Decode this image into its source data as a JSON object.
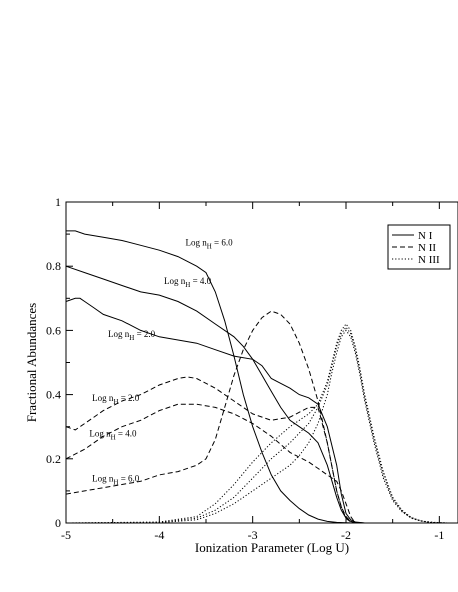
{
  "chart_data": {
    "type": "line",
    "xlabel": "Ionization Parameter (Log U)",
    "ylabel": "Fractional Abundances",
    "xlim": [
      -5,
      -0.8
    ],
    "ylim": [
      0,
      1
    ],
    "x_ticks": [
      -5,
      -4,
      -3,
      -2,
      -1
    ],
    "x_tick_labels": [
      "-5",
      "-4",
      "-3",
      "-2",
      "-1"
    ],
    "y_ticks": [
      0,
      0.2,
      0.4,
      0.6,
      0.8,
      1
    ],
    "y_tick_labels": [
      "0",
      "0.2",
      "0.4",
      "0.6",
      "0.8",
      "1"
    ],
    "grid": false,
    "legend_position": "top-right",
    "legend": [
      {
        "label": "N I",
        "style": "solid"
      },
      {
        "label": "N II",
        "style": "dashed"
      },
      {
        "label": "N III",
        "style": "dotted"
      }
    ],
    "annotations": [
      {
        "prefix": "Log n",
        "sub": "H",
        "suffix": " = 6.0",
        "x": -3.72,
        "y": 0.865
      },
      {
        "prefix": "Log n",
        "sub": "H",
        "suffix": " = 4.0",
        "x": -3.95,
        "y": 0.745
      },
      {
        "prefix": "Log n",
        "sub": "H",
        "suffix": " = 2.0",
        "x": -4.55,
        "y": 0.58
      },
      {
        "prefix": "Log n",
        "sub": "H",
        "suffix": " = 2.0",
        "x": -4.72,
        "y": 0.38
      },
      {
        "prefix": "Log n",
        "sub": "H",
        "suffix": " = 4.0",
        "x": -4.75,
        "y": 0.27
      },
      {
        "prefix": "Log n",
        "sub": "H",
        "suffix": " = 6.0",
        "x": -4.72,
        "y": 0.13
      }
    ],
    "series": [
      {
        "species": "N I",
        "style": "solid",
        "label": "Log nH = 6.0",
        "x": [
          -5,
          -4.9,
          -4.8,
          -4.6,
          -4.4,
          -4.2,
          -4.0,
          -3.8,
          -3.6,
          -3.5,
          -3.4,
          -3.3,
          -3.2,
          -3.1,
          -3.0,
          -2.9,
          -2.8,
          -2.7,
          -2.6,
          -2.5,
          -2.4,
          -2.3,
          -2.2,
          -2.1,
          -2.0,
          -1.9,
          -1.8
        ],
        "y": [
          0.91,
          0.91,
          0.9,
          0.89,
          0.88,
          0.865,
          0.85,
          0.83,
          0.8,
          0.78,
          0.72,
          0.63,
          0.52,
          0.4,
          0.3,
          0.22,
          0.15,
          0.1,
          0.07,
          0.045,
          0.025,
          0.012,
          0.005,
          0.002,
          0.001,
          0.0,
          0.0
        ]
      },
      {
        "species": "N I",
        "style": "solid",
        "label": "Log nH = 4.0",
        "x": [
          -5,
          -4.8,
          -4.6,
          -4.4,
          -4.2,
          -4.0,
          -3.8,
          -3.6,
          -3.4,
          -3.2,
          -3.1,
          -3.0,
          -2.9,
          -2.8,
          -2.7,
          -2.6,
          -2.5,
          -2.4,
          -2.3,
          -2.2,
          -2.1,
          -2.05,
          -2.0,
          -1.95,
          -1.9,
          -1.8
        ],
        "y": [
          0.8,
          0.78,
          0.76,
          0.74,
          0.72,
          0.71,
          0.69,
          0.66,
          0.62,
          0.58,
          0.55,
          0.51,
          0.46,
          0.41,
          0.36,
          0.32,
          0.3,
          0.28,
          0.25,
          0.18,
          0.08,
          0.04,
          0.015,
          0.005,
          0.002,
          0.0
        ]
      },
      {
        "species": "N I",
        "style": "solid",
        "label": "Log nH = 2.0",
        "x": [
          -5,
          -4.9,
          -4.85,
          -4.8,
          -4.7,
          -4.6,
          -4.4,
          -4.2,
          -4.0,
          -3.8,
          -3.6,
          -3.4,
          -3.2,
          -3.0,
          -2.9,
          -2.8,
          -2.6,
          -2.5,
          -2.4,
          -2.3,
          -2.2,
          -2.1,
          -2.05,
          -2.0,
          -1.95,
          -1.9,
          -1.8
        ],
        "y": [
          0.69,
          0.7,
          0.7,
          0.69,
          0.67,
          0.65,
          0.63,
          0.6,
          0.58,
          0.57,
          0.56,
          0.54,
          0.52,
          0.51,
          0.49,
          0.45,
          0.42,
          0.4,
          0.39,
          0.37,
          0.3,
          0.18,
          0.09,
          0.03,
          0.01,
          0.003,
          0.0
        ]
      },
      {
        "species": "N II",
        "style": "dashed",
        "label": "Log nH = 2.0",
        "x": [
          -5,
          -4.9,
          -4.8,
          -4.7,
          -4.6,
          -4.4,
          -4.2,
          -4.0,
          -3.8,
          -3.7,
          -3.6,
          -3.4,
          -3.2,
          -3.0,
          -2.8,
          -2.6,
          -2.4,
          -2.3,
          -2.2,
          -2.1,
          -2.05,
          -2.0,
          -1.95,
          -1.9
        ],
        "y": [
          0.3,
          0.29,
          0.31,
          0.33,
          0.35,
          0.38,
          0.4,
          0.43,
          0.45,
          0.455,
          0.45,
          0.42,
          0.38,
          0.34,
          0.32,
          0.33,
          0.36,
          0.36,
          0.25,
          0.1,
          0.05,
          0.02,
          0.005,
          0.0
        ]
      },
      {
        "species": "N II",
        "style": "dashed",
        "label": "Log nH = 4.0",
        "x": [
          -5,
          -4.8,
          -4.6,
          -4.4,
          -4.2,
          -4.0,
          -3.8,
          -3.7,
          -3.6,
          -3.4,
          -3.2,
          -3.0,
          -2.8,
          -2.6,
          -2.4,
          -2.3,
          -2.2,
          -2.1,
          -2.05,
          -2.0,
          -1.95,
          -1.9
        ],
        "y": [
          0.2,
          0.23,
          0.27,
          0.3,
          0.32,
          0.35,
          0.37,
          0.37,
          0.37,
          0.36,
          0.34,
          0.31,
          0.27,
          0.22,
          0.19,
          0.17,
          0.15,
          0.13,
          0.1,
          0.06,
          0.02,
          0.0
        ]
      },
      {
        "species": "N II",
        "style": "dashed",
        "label": "Log nH = 6.0",
        "x": [
          -5,
          -4.8,
          -4.6,
          -4.4,
          -4.2,
          -4.0,
          -3.8,
          -3.6,
          -3.5,
          -3.4,
          -3.3,
          -3.2,
          -3.1,
          -3.0,
          -2.9,
          -2.8,
          -2.7,
          -2.6,
          -2.5,
          -2.4,
          -2.3,
          -2.2,
          -2.1,
          -2.05,
          -2.0,
          -1.95,
          -1.9
        ],
        "y": [
          0.09,
          0.1,
          0.11,
          0.12,
          0.13,
          0.15,
          0.16,
          0.18,
          0.2,
          0.26,
          0.36,
          0.46,
          0.54,
          0.6,
          0.64,
          0.66,
          0.65,
          0.62,
          0.56,
          0.48,
          0.38,
          0.25,
          0.1,
          0.05,
          0.015,
          0.003,
          0.0
        ]
      },
      {
        "species": "N III",
        "style": "dotted",
        "label": "Log nH = 2.0",
        "x": [
          -5,
          -4.0,
          -3.6,
          -3.4,
          -3.2,
          -3.0,
          -2.8,
          -2.6,
          -2.5,
          -2.4,
          -2.3,
          -2.2,
          -2.15,
          -2.1,
          -2.05,
          -2.0,
          -1.95,
          -1.9,
          -1.85,
          -1.8,
          -1.7,
          -1.6,
          -1.5,
          -1.4,
          -1.3,
          -1.2,
          -1.1,
          -1.0,
          -0.9,
          -0.8
        ],
        "y": [
          0,
          0.001,
          0.01,
          0.03,
          0.06,
          0.1,
          0.14,
          0.18,
          0.21,
          0.25,
          0.31,
          0.4,
          0.47,
          0.53,
          0.58,
          0.6,
          0.58,
          0.53,
          0.46,
          0.38,
          0.25,
          0.14,
          0.07,
          0.035,
          0.015,
          0.006,
          0.002,
          0.001,
          0,
          0
        ]
      },
      {
        "species": "N III",
        "style": "dotted",
        "label": "Log nH = 4.0",
        "x": [
          -5,
          -4.0,
          -3.6,
          -3.4,
          -3.2,
          -3.0,
          -2.8,
          -2.6,
          -2.5,
          -2.4,
          -2.3,
          -2.2,
          -2.15,
          -2.1,
          -2.05,
          -2.0,
          -1.95,
          -1.9,
          -1.85,
          -1.8,
          -1.7,
          -1.6,
          -1.5,
          -1.4,
          -1.3,
          -1.2,
          -1.1,
          -1.0,
          -0.9,
          -0.8
        ],
        "y": [
          0,
          0.002,
          0.015,
          0.04,
          0.08,
          0.14,
          0.2,
          0.25,
          0.28,
          0.31,
          0.36,
          0.43,
          0.49,
          0.55,
          0.59,
          0.61,
          0.59,
          0.54,
          0.47,
          0.39,
          0.26,
          0.15,
          0.075,
          0.037,
          0.016,
          0.007,
          0.002,
          0.001,
          0,
          0
        ]
      },
      {
        "species": "N III",
        "style": "dotted",
        "label": "Log nH = 6.0",
        "x": [
          -5,
          -4.0,
          -3.6,
          -3.4,
          -3.2,
          -3.0,
          -2.8,
          -2.6,
          -2.5,
          -2.4,
          -2.3,
          -2.2,
          -2.15,
          -2.1,
          -2.05,
          -2.0,
          -1.95,
          -1.9,
          -1.85,
          -1.8,
          -1.7,
          -1.6,
          -1.5,
          -1.4,
          -1.3,
          -1.2,
          -1.1,
          -1.0,
          -0.9,
          -0.8
        ],
        "y": [
          0,
          0.003,
          0.02,
          0.06,
          0.12,
          0.19,
          0.25,
          0.3,
          0.32,
          0.34,
          0.37,
          0.44,
          0.5,
          0.56,
          0.6,
          0.62,
          0.6,
          0.55,
          0.48,
          0.4,
          0.27,
          0.16,
          0.08,
          0.04,
          0.017,
          0.007,
          0.003,
          0.001,
          0,
          0
        ]
      }
    ]
  }
}
